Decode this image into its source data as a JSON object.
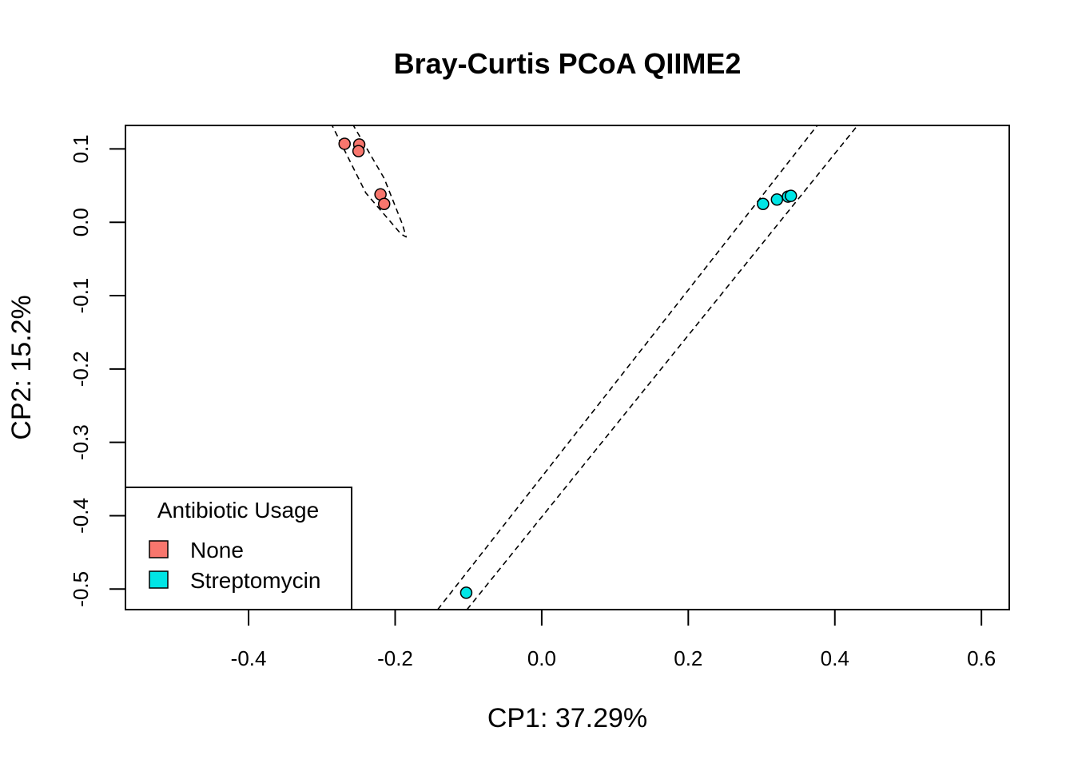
{
  "chart_data": {
    "type": "scatter",
    "title": "Bray-Curtis PCoA QIIME2",
    "xlabel": "CP1: 37.29%",
    "ylabel": "CP2: 15.2%",
    "xlim": [
      -0.568,
      0.638
    ],
    "ylim": [
      -0.528,
      0.132
    ],
    "x_ticks": [
      -0.4,
      -0.2,
      0.0,
      0.2,
      0.4,
      0.6
    ],
    "x_tick_labels": [
      "-0.4",
      "-0.2",
      "0.0",
      "0.2",
      "0.4",
      "0.6"
    ],
    "y_ticks": [
      0.1,
      0.0,
      -0.1,
      -0.2,
      -0.3,
      -0.4,
      -0.5
    ],
    "y_tick_labels": [
      "0.1",
      "0.0",
      "-0.1",
      "-0.2",
      "-0.3",
      "-0.4",
      "-0.5"
    ],
    "grid": false,
    "legend": {
      "title": "Antibiotic Usage",
      "position": "bottom-left",
      "entries": [
        {
          "label": "None",
          "color": "#F8766D"
        },
        {
          "label": "Streptomycin",
          "color": "#00E5E5"
        }
      ]
    },
    "series": [
      {
        "name": "None",
        "color": "#F8766D",
        "points": [
          {
            "x": -0.269,
            "y": 0.107
          },
          {
            "x": -0.249,
            "y": 0.106
          },
          {
            "x": -0.25,
            "y": 0.097
          },
          {
            "x": -0.22,
            "y": 0.038
          },
          {
            "x": -0.215,
            "y": 0.025
          }
        ],
        "ellipse": [
          {
            "x": -0.286,
            "y": 0.132
          },
          {
            "x": -0.257,
            "y": 0.132
          },
          {
            "x": -0.215,
            "y": 0.06
          },
          {
            "x": -0.19,
            "y": -0.003
          },
          {
            "x": -0.185,
            "y": -0.02
          },
          {
            "x": -0.192,
            "y": -0.016
          },
          {
            "x": -0.24,
            "y": 0.04
          },
          {
            "x": -0.275,
            "y": 0.11
          },
          {
            "x": -0.286,
            "y": 0.132
          }
        ]
      },
      {
        "name": "Streptomycin",
        "color": "#00E5E5",
        "points": [
          {
            "x": 0.302,
            "y": 0.025
          },
          {
            "x": 0.321,
            "y": 0.031
          },
          {
            "x": 0.336,
            "y": 0.035
          },
          {
            "x": 0.34,
            "y": 0.036
          },
          {
            "x": -0.103,
            "y": -0.505
          }
        ],
        "ellipse_lines": [
          [
            {
              "x": -0.142,
              "y": -0.528
            },
            {
              "x": 0.376,
              "y": 0.132
            }
          ],
          [
            {
              "x": -0.102,
              "y": -0.528
            },
            {
              "x": 0.431,
              "y": 0.132
            }
          ]
        ]
      }
    ]
  }
}
